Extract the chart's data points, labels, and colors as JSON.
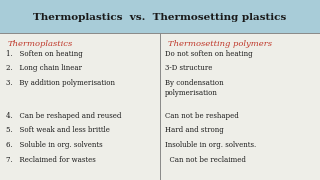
{
  "title": "Thermoplastics  vs.  Thermosetting plastics",
  "title_fontsize": 7.5,
  "title_color": "#1a1a1a",
  "top_bg": "#a8ccd8",
  "header_left": "Thermoplastics",
  "header_right": "Thermosetting polymers",
  "header_color": "#c0392b",
  "header_fontsize": 6.0,
  "items_left": [
    "1.   Soften on heating",
    "2.   Long chain linear",
    "3.   By addition polymerisation",
    "",
    "4.   Can be reshaped and reused",
    "5.   Soft weak and less brittle",
    "6.   Soluble in org. solvents",
    "7.   Reclaimed for wastes"
  ],
  "items_right": [
    "Do not soften on heating",
    "3-D structure",
    "By condensation\npolymerisation",
    "",
    "Can not be reshaped",
    "Hard and strong",
    "Insoluble in org. solvents.",
    "  Can not be reclaimed"
  ],
  "item_color": "#1a1a1a",
  "item_fontsize": 5.0,
  "bg_color": "#eeeee8",
  "divider_color": "#888888",
  "top_wave_bg": "#b8d8e8"
}
